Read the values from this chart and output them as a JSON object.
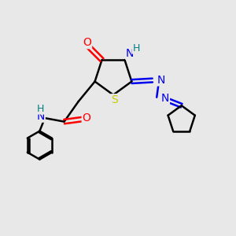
{
  "bg_color": "#e8e8e8",
  "bond_color": "#000000",
  "atom_colors": {
    "N": "#0000ee",
    "O": "#ff0000",
    "S": "#cccc00",
    "H": "#008080",
    "C": "#000000"
  }
}
